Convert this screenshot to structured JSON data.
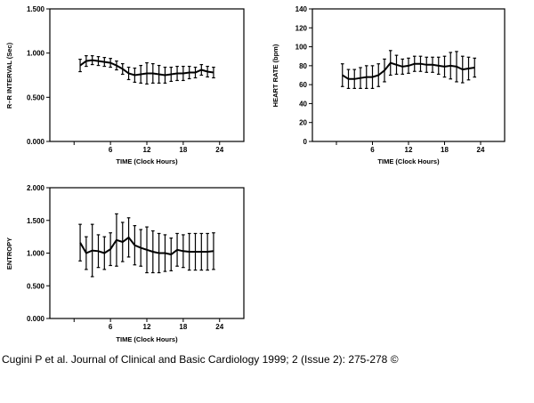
{
  "citation": "Cugini P et al. Journal of Clinical and Basic Cardiology 1999; 2 (Issue 2): 275-278 ©",
  "chart_data": [
    {
      "type": "line",
      "xlabel": "TIME (Clock Hours)",
      "ylabel": "R–R INTERVAL (Sec)",
      "xlim": [
        -4,
        28
      ],
      "ylim": [
        0,
        1.5
      ],
      "xticks": [
        6,
        12,
        18,
        24
      ],
      "xtick_labels": [
        "6",
        "12",
        "18",
        "24"
      ],
      "yticks": [
        0,
        0.5,
        1.0,
        1.5
      ],
      "ytick_labels": [
        "0.000",
        "0.500",
        "1.000",
        "1.500"
      ],
      "grid": false,
      "x": [
        1,
        2,
        3,
        4,
        5,
        6,
        7,
        8,
        9,
        10,
        11,
        12,
        13,
        14,
        15,
        16,
        17,
        18,
        19,
        20,
        21,
        22,
        23
      ],
      "y": [
        0.86,
        0.91,
        0.92,
        0.91,
        0.9,
        0.89,
        0.86,
        0.82,
        0.77,
        0.75,
        0.76,
        0.77,
        0.77,
        0.76,
        0.75,
        0.76,
        0.77,
        0.77,
        0.78,
        0.78,
        0.81,
        0.79,
        0.78
      ],
      "err": [
        0.07,
        0.06,
        0.05,
        0.05,
        0.05,
        0.05,
        0.05,
        0.06,
        0.07,
        0.08,
        0.1,
        0.12,
        0.11,
        0.1,
        0.09,
        0.08,
        0.08,
        0.08,
        0.07,
        0.06,
        0.06,
        0.06,
        0.06
      ]
    },
    {
      "type": "line",
      "xlabel": "TIME (Clock Hours)",
      "ylabel": "HEART RATE (bpm)",
      "xlim": [
        -4,
        28
      ],
      "ylim": [
        0,
        140
      ],
      "xticks": [
        6,
        12,
        18,
        24
      ],
      "xtick_labels": [
        "6",
        "12",
        "18",
        "24"
      ],
      "yticks": [
        0,
        20,
        40,
        60,
        80,
        100,
        120,
        140
      ],
      "ytick_labels": [
        "0",
        "20",
        "40",
        "60",
        "80",
        "100",
        "120",
        "140"
      ],
      "grid": false,
      "x": [
        1,
        2,
        3,
        4,
        5,
        6,
        7,
        8,
        9,
        10,
        11,
        12,
        13,
        14,
        15,
        16,
        17,
        18,
        19,
        20,
        21,
        22,
        23
      ],
      "y": [
        70,
        66,
        66,
        67,
        68,
        68,
        70,
        75,
        83,
        81,
        79,
        80,
        82,
        82,
        81,
        81,
        80,
        79,
        80,
        79,
        76,
        77,
        78
      ],
      "err": [
        12,
        10,
        10,
        11,
        12,
        12,
        12,
        12,
        13,
        10,
        8,
        8,
        8,
        8,
        8,
        8,
        9,
        11,
        14,
        16,
        14,
        12,
        10
      ]
    },
    {
      "type": "line",
      "xlabel": "TIME (Clock Hours)",
      "ylabel": "ENTROPY",
      "xlim": [
        -4,
        28
      ],
      "ylim": [
        0,
        2
      ],
      "xticks": [
        6,
        12,
        18,
        24
      ],
      "xtick_labels": [
        "6",
        "12",
        "18",
        "24"
      ],
      "yticks": [
        0,
        0.5,
        1.0,
        1.5,
        2.0
      ],
      "ytick_labels": [
        "0.000",
        "0.500",
        "1.000",
        "1.500",
        "2.000"
      ],
      "grid": false,
      "x": [
        1,
        2,
        3,
        4,
        5,
        6,
        7,
        8,
        9,
        10,
        11,
        12,
        13,
        14,
        15,
        16,
        17,
        18,
        19,
        20,
        21,
        22,
        23
      ],
      "y": [
        1.16,
        1.0,
        1.04,
        1.03,
        1.0,
        1.06,
        1.2,
        1.17,
        1.24,
        1.12,
        1.08,
        1.05,
        1.02,
        1.0,
        1.0,
        0.98,
        1.05,
        1.03,
        1.02,
        1.02,
        1.02,
        1.02,
        1.03
      ],
      "err": [
        0.28,
        0.25,
        0.4,
        0.25,
        0.25,
        0.25,
        0.4,
        0.3,
        0.3,
        0.3,
        0.28,
        0.35,
        0.32,
        0.3,
        0.28,
        0.25,
        0.25,
        0.25,
        0.28,
        0.28,
        0.28,
        0.28,
        0.28
      ]
    }
  ]
}
